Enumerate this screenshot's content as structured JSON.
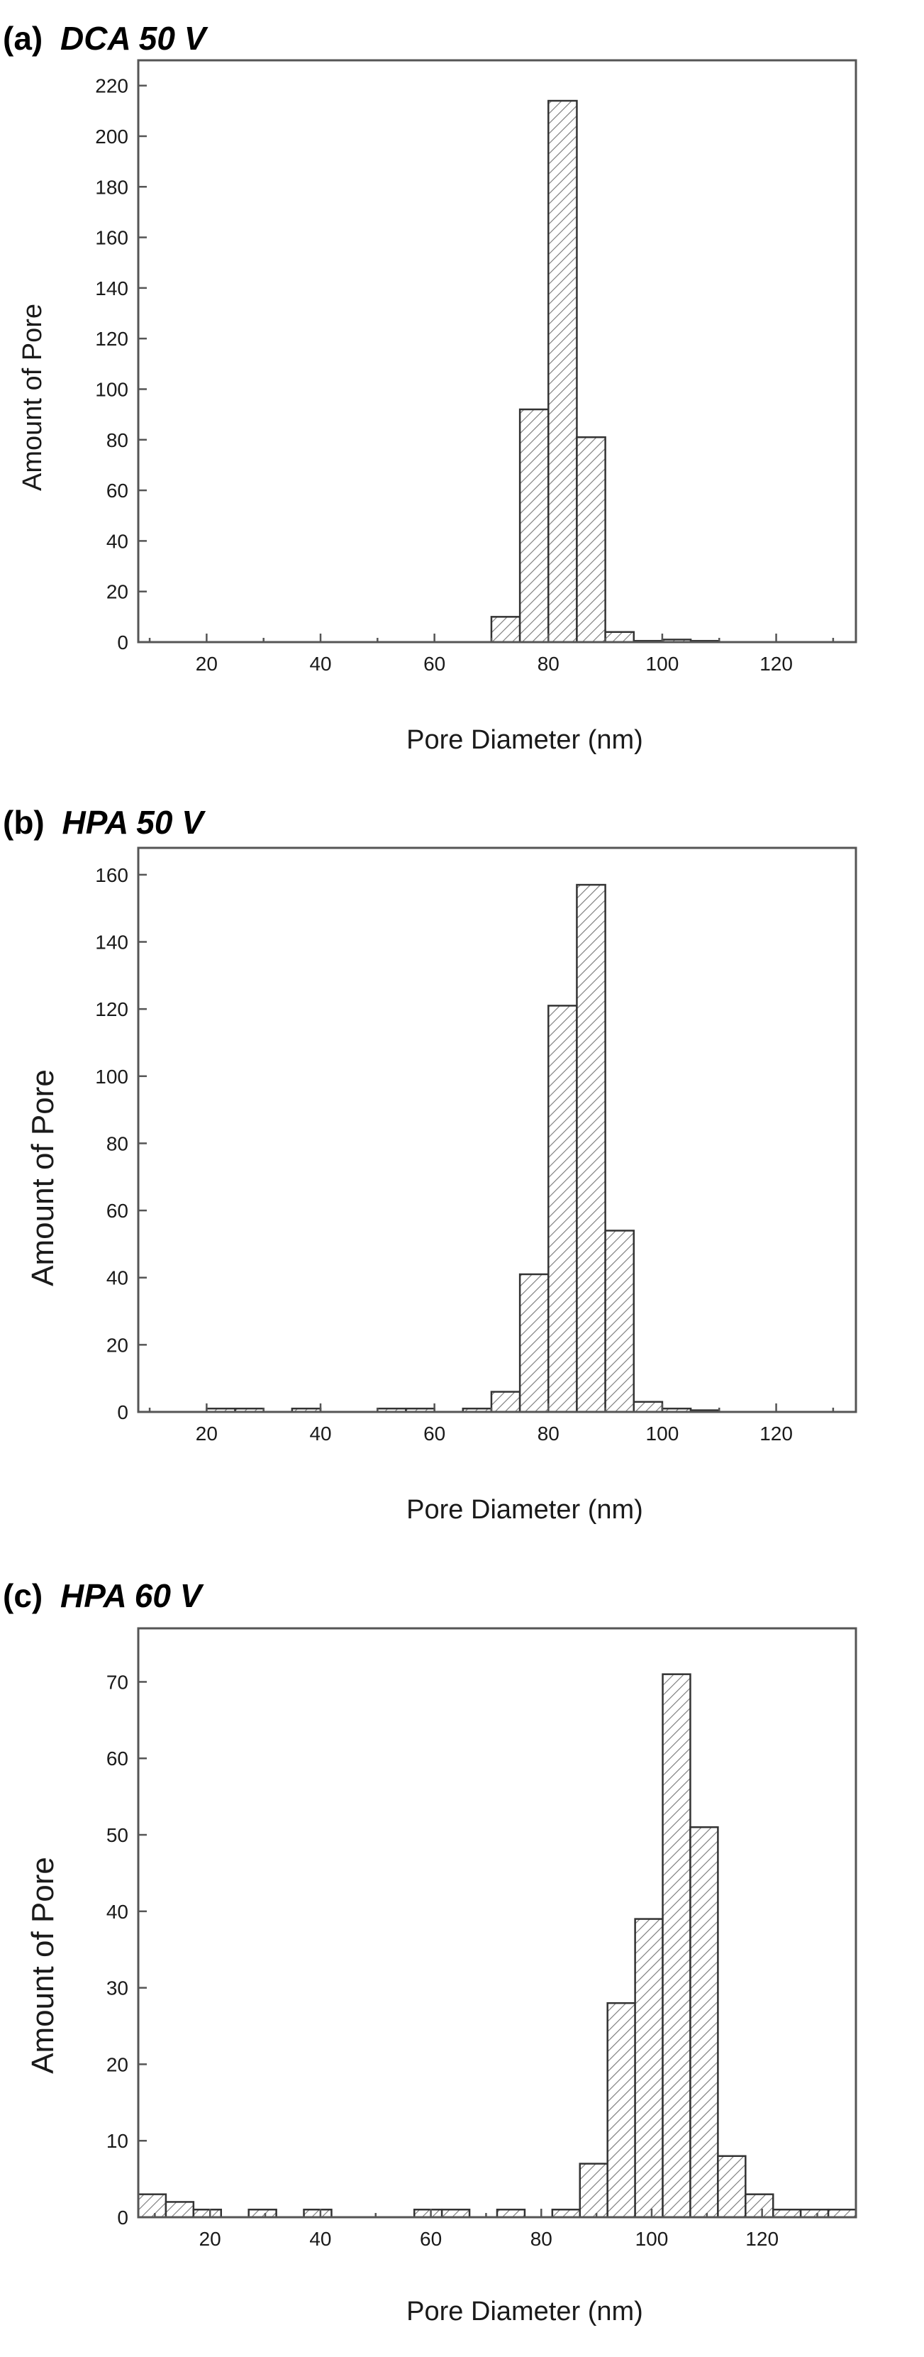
{
  "figure": {
    "panels": [
      {
        "id": "a",
        "prefix": "(a)",
        "title": "DCA 50 V"
      },
      {
        "id": "b",
        "prefix": "(b)",
        "title": "HPA 50 V"
      },
      {
        "id": "c",
        "prefix": "(c)",
        "title": "HPA 60 V"
      }
    ]
  },
  "colors": {
    "bar_fill": "#ffffff",
    "hatch": "#777777",
    "frame": "#555555"
  },
  "chart_data": [
    {
      "type": "bar",
      "title": "(a) DCA 50 V",
      "xlabel": "Pore Diameter (nm)",
      "ylabel": "Amount of Pore",
      "xlim": [
        8,
        134
      ],
      "ylim": [
        0,
        230
      ],
      "xticks": [
        20,
        40,
        60,
        80,
        100,
        120
      ],
      "yticks": [
        0,
        20,
        40,
        60,
        80,
        100,
        120,
        140,
        160,
        180,
        200,
        220
      ],
      "bin_width": 5,
      "bins": [
        72.5,
        77.5,
        82.5,
        87.5,
        92.5,
        97.5,
        102.5,
        107.5
      ],
      "values": [
        10,
        92,
        214,
        81,
        4,
        0.5,
        1,
        0.5
      ],
      "grid": false,
      "hatch": "diagonal"
    },
    {
      "type": "bar",
      "title": "(b) HPA 50 V",
      "xlabel": "Pore Diameter (nm)",
      "ylabel": "Amount of Pore",
      "xlim": [
        8,
        134
      ],
      "ylim": [
        0,
        168
      ],
      "xticks": [
        20,
        40,
        60,
        80,
        100,
        120
      ],
      "yticks": [
        0,
        20,
        40,
        60,
        80,
        100,
        120,
        140,
        160
      ],
      "bin_width": 5,
      "bins": [
        22.5,
        27.5,
        37.5,
        52.5,
        57.5,
        67.5,
        72.5,
        77.5,
        82.5,
        87.5,
        92.5,
        97.5,
        102.5,
        107.5
      ],
      "values": [
        1,
        1,
        1,
        1,
        1,
        1,
        6,
        41,
        121,
        157,
        54,
        3,
        1,
        0.5
      ],
      "grid": false,
      "hatch": "diagonal"
    },
    {
      "type": "bar",
      "title": "(c) HPA 60 V",
      "xlabel": "Pore Diameter (nm)",
      "ylabel": "Amount of Pore",
      "xlim": [
        7,
        137
      ],
      "ylim": [
        0,
        77
      ],
      "xticks": [
        20,
        40,
        60,
        80,
        100,
        120
      ],
      "yticks": [
        0,
        10,
        20,
        30,
        40,
        50,
        60,
        70
      ],
      "bin_width": 5,
      "bins": [
        9.5,
        14.5,
        19.5,
        29.5,
        39.5,
        59.5,
        64.5,
        74.5,
        84.5,
        89.5,
        94.5,
        99.5,
        104.5,
        109.5,
        114.5,
        119.5,
        124.5,
        129.5,
        134.5
      ],
      "values": [
        3,
        2,
        1,
        1,
        1,
        1,
        1,
        1,
        1,
        7,
        28,
        39,
        71,
        51,
        8,
        3,
        1,
        1,
        1
      ],
      "grid": false,
      "hatch": "diagonal"
    }
  ]
}
